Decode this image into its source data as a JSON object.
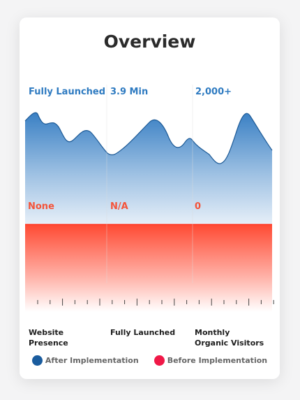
{
  "card": {
    "title": "Overview"
  },
  "chart_data": {
    "type": "area",
    "categories": [
      "Website Presence",
      "Fully Launched",
      "Monthly Organic Visitors"
    ],
    "series": [
      {
        "name": "After Implementation",
        "color": "#2f7bc1",
        "values": [
          "Fully Launched",
          "3.9 Min",
          "2,000+"
        ]
      },
      {
        "name": "Before Implementation",
        "color": "#f4543a",
        "values": [
          "None",
          "N/A",
          "0"
        ]
      }
    ]
  },
  "legend": {
    "after_label": "After Implementation",
    "after_color": "#1a5c9e",
    "before_label": "Before Implementation",
    "before_color": "#f01847"
  }
}
